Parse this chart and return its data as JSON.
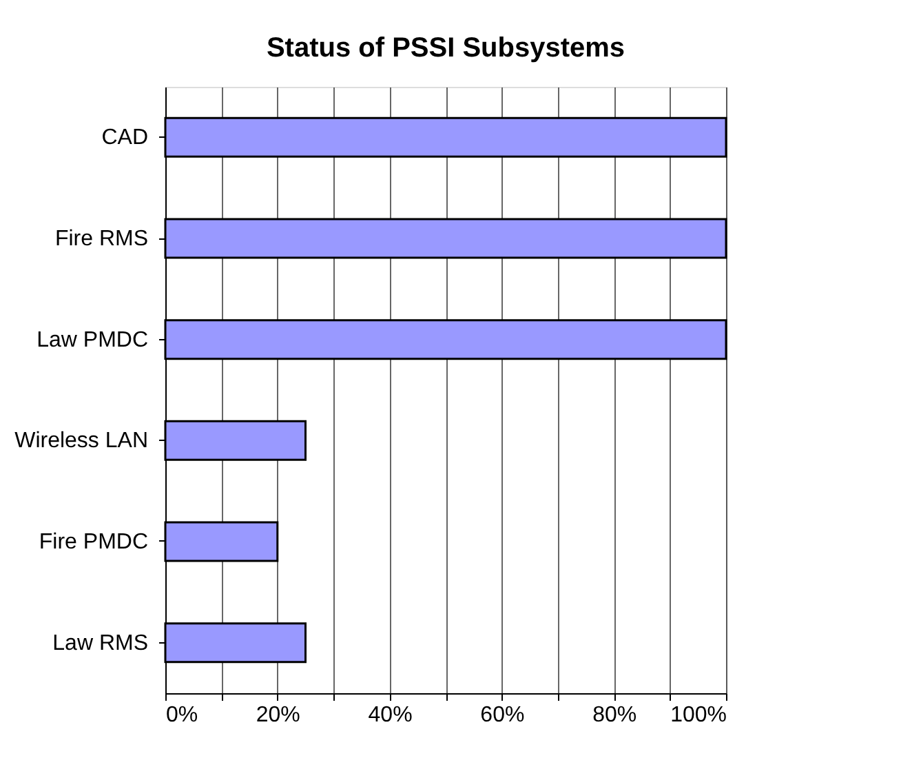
{
  "chart_data": {
    "type": "bar",
    "orientation": "horizontal",
    "title": "Status of PSSI Subsystems",
    "categories": [
      "CAD",
      "Fire RMS",
      "Law PMDC",
      "Wireless LAN",
      "Fire PMDC",
      "Law RMS"
    ],
    "values": [
      100,
      100,
      100,
      25,
      20,
      25
    ],
    "color": "#9999ff",
    "xlim": [
      0,
      100
    ],
    "xticks": [
      {
        "value": 0,
        "label": "0%"
      },
      {
        "value": 10,
        "label": null
      },
      {
        "value": 20,
        "label": "20%"
      },
      {
        "value": 30,
        "label": null
      },
      {
        "value": 40,
        "label": "40%"
      },
      {
        "value": 50,
        "label": null
      },
      {
        "value": 60,
        "label": "60%"
      },
      {
        "value": 70,
        "label": null
      },
      {
        "value": 80,
        "label": "80%"
      },
      {
        "value": 90,
        "label": null
      },
      {
        "value": 100,
        "label": "100%"
      }
    ],
    "grid": "x"
  }
}
